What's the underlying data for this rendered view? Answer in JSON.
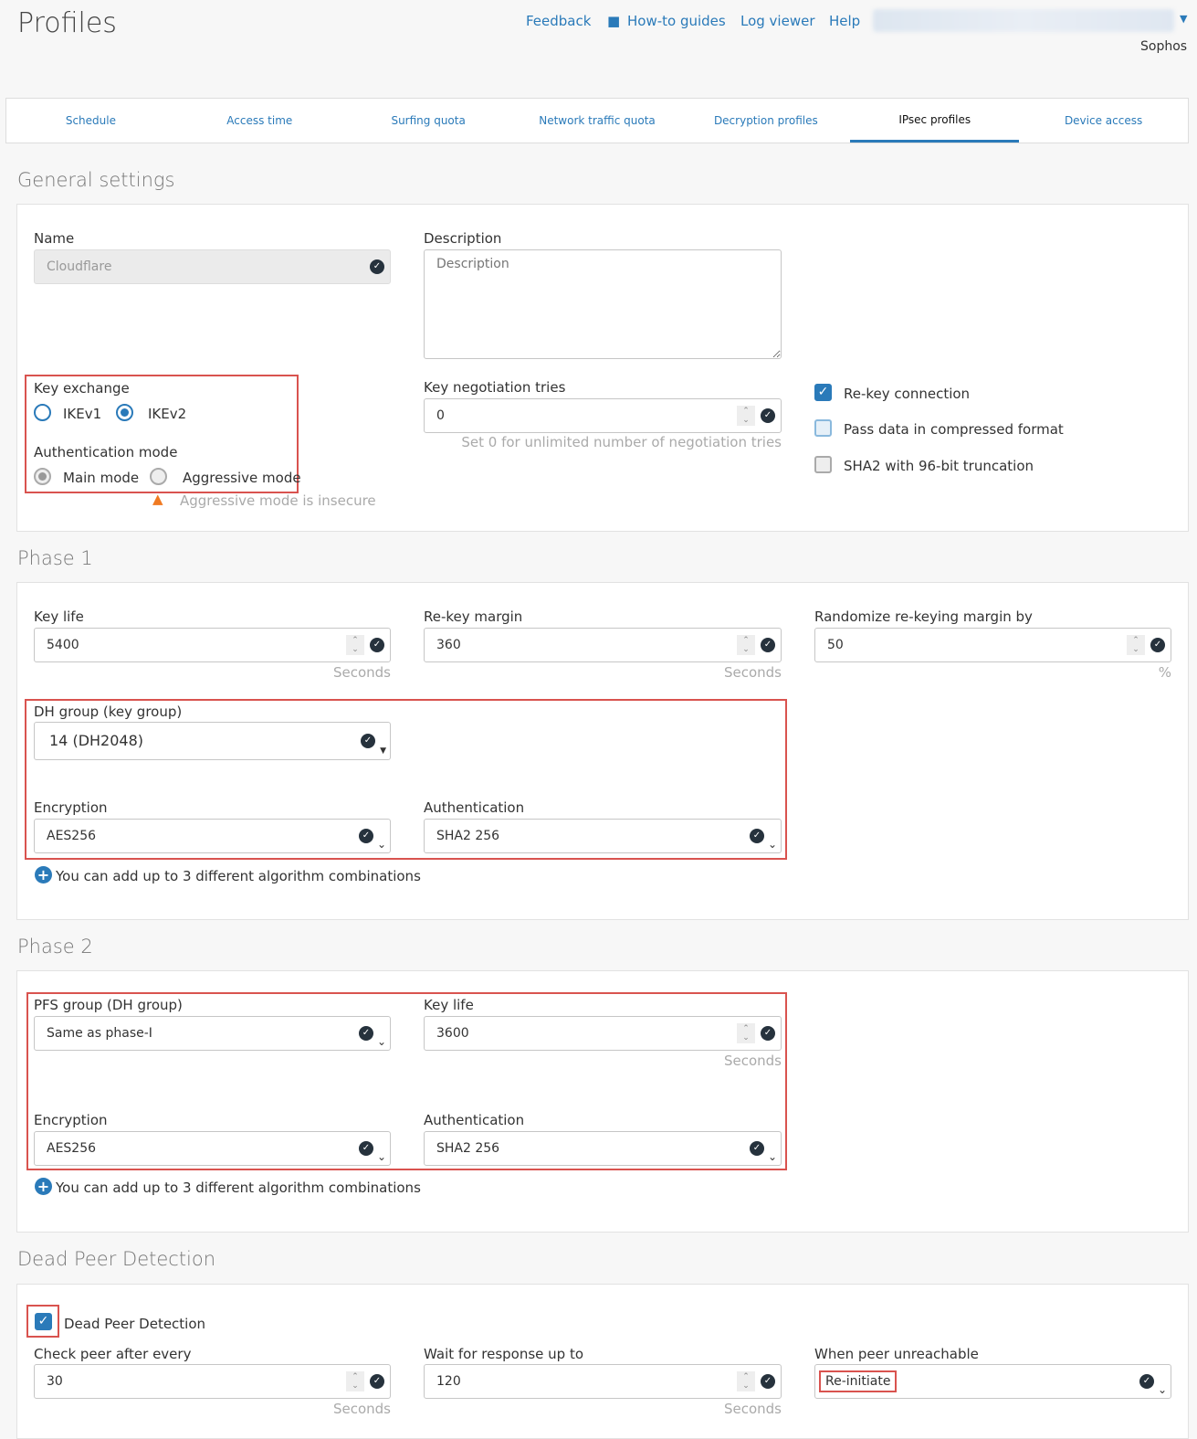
{
  "header": {
    "title": "Profiles",
    "links": [
      "Feedback",
      "How-to guides",
      "Log viewer",
      "Help"
    ],
    "org": "Sophos"
  },
  "tabs": [
    "Schedule",
    "Access time",
    "Surfing quota",
    "Network traffic quota",
    "Decryption profiles",
    "IPsec profiles",
    "Device access"
  ],
  "active_tab": "IPsec profiles",
  "general": {
    "title": "General settings",
    "name_label": "Name",
    "name_value": "Cloudflare",
    "desc_label": "Description",
    "desc_placeholder": "Description",
    "key_exchange_label": "Key exchange",
    "ikev1": "IKEv1",
    "ikev2": "IKEv2",
    "key_exchange_selected": "IKEv2",
    "auth_mode_label": "Authentication mode",
    "main_mode": "Main mode",
    "aggressive_mode": "Aggressive mode",
    "auth_mode_selected": "Main mode",
    "warning": "Aggressive mode is insecure",
    "tries_label": "Key negotiation tries",
    "tries_value": "0",
    "tries_hint": "Set 0 for unlimited number of negotiation tries",
    "rekey": "Re-key connection",
    "rekey_checked": true,
    "compress": "Pass data in compressed format",
    "compress_checked": false,
    "sha2": "SHA2 with 96-bit truncation",
    "sha2_checked": false
  },
  "phase1": {
    "title": "Phase 1",
    "keylife_label": "Key life",
    "keylife_value": "5400",
    "keylife_unit": "Seconds",
    "margin_label": "Re-key margin",
    "margin_value": "360",
    "margin_unit": "Seconds",
    "random_label": "Randomize re-keying margin by",
    "random_value": "50",
    "random_unit": "%",
    "dh_label": "DH group (key group)",
    "dh_value": "14 (DH2048)",
    "enc_label": "Encryption",
    "enc_value": "AES256",
    "auth_label": "Authentication",
    "auth_value": "SHA2 256",
    "add_note": "You can add up to 3 different algorithm combinations"
  },
  "phase2": {
    "title": "Phase 2",
    "pfs_label": "PFS group (DH group)",
    "pfs_value": "Same as phase-I",
    "keylife_label": "Key life",
    "keylife_value": "3600",
    "keylife_unit": "Seconds",
    "enc_label": "Encryption",
    "enc_value": "AES256",
    "auth_label": "Authentication",
    "auth_value": "SHA2 256",
    "add_note": "You can add up to 3 different algorithm combinations"
  },
  "dpd": {
    "title": "Dead Peer Detection",
    "checkbox": "Dead Peer Detection",
    "checked": true,
    "check_label": "Check peer after every",
    "check_value": "30",
    "check_unit": "Seconds",
    "wait_label": "Wait for response up to",
    "wait_value": "120",
    "wait_unit": "Seconds",
    "unreach_label": "When peer unreachable",
    "unreach_value": "Re-initiate"
  },
  "colors": {
    "accent": "#2a7ab9",
    "highlight": "#d9534f",
    "warning": "#f07a22"
  }
}
